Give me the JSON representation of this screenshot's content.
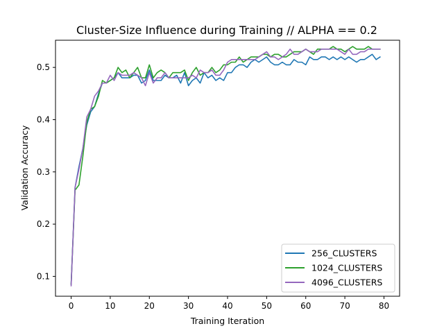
{
  "chart_data": {
    "type": "line",
    "title": "Cluster-Size Influence during Training // ALPHA == 0.2",
    "xlabel": "Training Iteration",
    "ylabel": "Validation Accuracy",
    "xlim": [
      -4,
      84
    ],
    "ylim": [
      0.062,
      0.552
    ],
    "xticks": [
      0,
      10,
      20,
      30,
      40,
      50,
      60,
      70,
      80
    ],
    "yticks": [
      0.1,
      0.2,
      0.3,
      0.4,
      0.5
    ],
    "grid": false,
    "legend_position": "lower-right",
    "series": [
      {
        "name": "256_CLUSTERS",
        "color": "#1f77b4",
        "values": [
          0.085,
          0.27,
          0.31,
          0.345,
          0.39,
          0.415,
          0.425,
          0.45,
          0.47,
          0.47,
          0.475,
          0.48,
          0.49,
          0.48,
          0.48,
          0.48,
          0.485,
          0.485,
          0.47,
          0.475,
          0.495,
          0.475,
          0.475,
          0.475,
          0.485,
          0.48,
          0.48,
          0.485,
          0.47,
          0.49,
          0.465,
          0.475,
          0.48,
          0.47,
          0.49,
          0.48,
          0.485,
          0.475,
          0.48,
          0.475,
          0.49,
          0.49,
          0.5,
          0.505,
          0.505,
          0.5,
          0.51,
          0.515,
          0.51,
          0.515,
          0.52,
          0.51,
          0.505,
          0.505,
          0.51,
          0.505,
          0.505,
          0.515,
          0.51,
          0.51,
          0.505,
          0.52,
          0.515,
          0.515,
          0.52,
          0.52,
          0.515,
          0.52,
          0.515,
          0.52,
          0.515,
          0.52,
          0.515,
          0.51,
          0.515,
          0.515,
          0.52,
          0.525,
          0.515,
          0.52
        ]
      },
      {
        "name": "1024_CLUSTERS",
        "color": "#2ca02c",
        "values": [
          0.085,
          0.265,
          0.275,
          0.33,
          0.395,
          0.42,
          0.425,
          0.445,
          0.475,
          0.47,
          0.475,
          0.48,
          0.5,
          0.49,
          0.495,
          0.48,
          0.49,
          0.5,
          0.48,
          0.48,
          0.505,
          0.48,
          0.49,
          0.495,
          0.49,
          0.48,
          0.49,
          0.49,
          0.49,
          0.495,
          0.475,
          0.49,
          0.5,
          0.485,
          0.49,
          0.49,
          0.5,
          0.49,
          0.495,
          0.505,
          0.505,
          0.51,
          0.51,
          0.52,
          0.51,
          0.515,
          0.52,
          0.52,
          0.52,
          0.525,
          0.525,
          0.52,
          0.525,
          0.525,
          0.52,
          0.52,
          0.525,
          0.53,
          0.53,
          0.53,
          0.535,
          0.53,
          0.525,
          0.535,
          0.535,
          0.535,
          0.535,
          0.54,
          0.535,
          0.535,
          0.53,
          0.535,
          0.54,
          0.535,
          0.535,
          0.535,
          0.54,
          0.535,
          0.535,
          0.535
        ]
      },
      {
        "name": "4096_CLUSTERS",
        "color": "#9467bd",
        "values": [
          0.082,
          0.27,
          0.305,
          0.345,
          0.405,
          0.42,
          0.445,
          0.455,
          0.47,
          0.47,
          0.485,
          0.475,
          0.49,
          0.485,
          0.485,
          0.485,
          0.49,
          0.485,
          0.48,
          0.465,
          0.49,
          0.47,
          0.48,
          0.48,
          0.49,
          0.48,
          0.48,
          0.48,
          0.48,
          0.48,
          0.48,
          0.485,
          0.48,
          0.495,
          0.49,
          0.49,
          0.495,
          0.485,
          0.485,
          0.495,
          0.51,
          0.515,
          0.515,
          0.515,
          0.515,
          0.515,
          0.515,
          0.515,
          0.52,
          0.525,
          0.53,
          0.52,
          0.52,
          0.515,
          0.52,
          0.525,
          0.535,
          0.525,
          0.525,
          0.53,
          0.535,
          0.53,
          0.53,
          0.53,
          0.535,
          0.535,
          0.535,
          0.535,
          0.535,
          0.53,
          0.525,
          0.535,
          0.525,
          0.525,
          0.53,
          0.53,
          0.535,
          0.535,
          0.535,
          0.535
        ]
      }
    ]
  }
}
